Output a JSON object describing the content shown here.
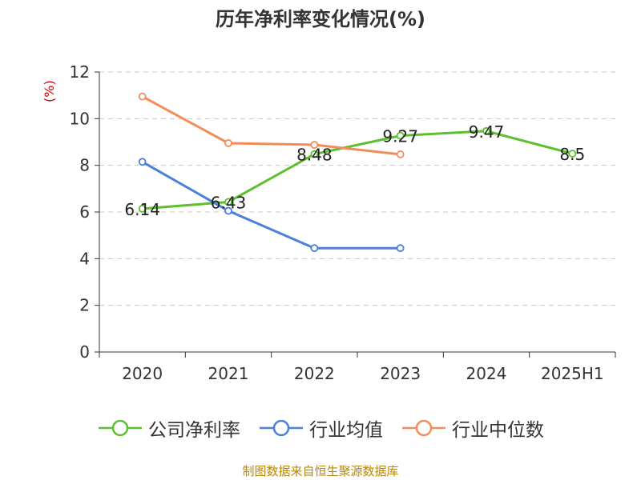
{
  "chart_data": {
    "type": "line",
    "title": "历年净利率变化情况(%)",
    "yunit": "(%)",
    "categories": [
      "2020",
      "2021",
      "2022",
      "2023",
      "2024",
      "2025H1"
    ],
    "ylim": [
      0,
      12
    ],
    "yticks": [
      "0",
      "2",
      "4",
      "6",
      "8",
      "10",
      "12"
    ],
    "grid": true,
    "legend_position": "bottom",
    "series": [
      {
        "name": "公司净利率",
        "color": "#5cbf2e",
        "values": [
          6.14,
          6.43,
          8.48,
          9.27,
          9.47,
          8.5
        ],
        "labels": [
          "6.14",
          "6.43",
          "8.48",
          "9.27",
          "9.47",
          "8.5"
        ]
      },
      {
        "name": "行业均值",
        "color": "#4a7fdb",
        "values": [
          8.15,
          6.05,
          4.45,
          4.45,
          null,
          null
        ]
      },
      {
        "name": "行业中位数",
        "color": "#f28c5a",
        "values": [
          10.95,
          8.95,
          8.88,
          8.47,
          null,
          null
        ]
      }
    ]
  },
  "source": "制图数据来自恒生聚源数据库"
}
